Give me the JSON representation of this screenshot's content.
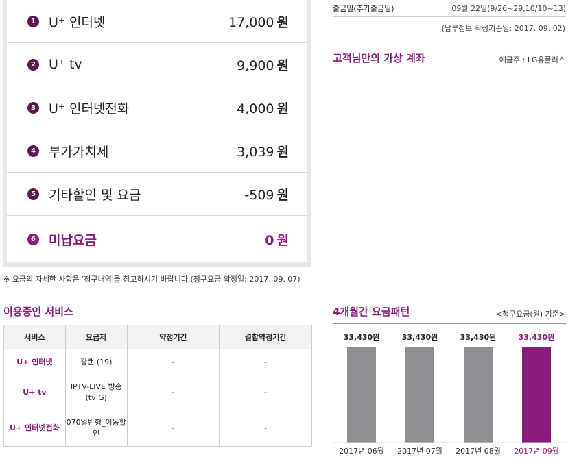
{
  "fees": {
    "items": [
      {
        "num": "1",
        "label": "U⁺ 인터넷",
        "amount": "17,000",
        "unit": "원"
      },
      {
        "num": "2",
        "label": "U⁺ tv",
        "amount": "9,900",
        "unit": "원"
      },
      {
        "num": "3",
        "label": "U⁺ 인터넷전화",
        "amount": "4,000",
        "unit": "원"
      },
      {
        "num": "4",
        "label": "부가가치세",
        "amount": "3,039",
        "unit": "원"
      },
      {
        "num": "5",
        "label": "기타할인 및 요금",
        "amount": "-509",
        "unit": "원"
      },
      {
        "num": "6",
        "label": "미납요금",
        "amount": "0",
        "unit": "원"
      }
    ],
    "note": "※ 요금의 자세한 사항은 '청구내역'을 참고하시기 바랍니다.(청구요금 확정일: 2017. 09. 07)"
  },
  "payment": {
    "label": "출금일(추가출금일)",
    "value": "09월 22일(9/26~29,10/10~13)",
    "sub": "(납부정보 작성기준일: 2017. 09. 02)"
  },
  "virtual_account": {
    "title": "고객님만의 가상 계좌",
    "depositor": "예금주 : LG유플러스"
  },
  "services": {
    "title": "이용중인 서비스",
    "headers": [
      "서비스",
      "요금제",
      "약정기간",
      "결합약정기간"
    ],
    "rows": [
      {
        "service": "U+ 인터넷",
        "plan": "광랜 (19)",
        "term": "-",
        "bundle_term": "-"
      },
      {
        "service": "U+ tv",
        "plan": "IPTV-LIVE 방송(tv G)",
        "term": "-",
        "bundle_term": "-"
      },
      {
        "service": "U+ 인터넷전화",
        "plan": "070일반형_이동할인",
        "term": "-",
        "bundle_term": "-"
      }
    ]
  },
  "chart_title": "4개월간 요금패턴",
  "chart_unit": "<청구요금(원) 기준>",
  "colors": {
    "accent": "#8a1a7c",
    "bar_gray": "#8e8e93"
  },
  "chart_data": {
    "type": "bar",
    "categories": [
      "2017년 06월",
      "2017년 07월",
      "2017년 08월",
      "2017년 09월"
    ],
    "values": [
      33430,
      33430,
      33430,
      33430
    ],
    "value_labels": [
      "33,430원",
      "33,430원",
      "33,430원",
      "33,430원"
    ],
    "highlight_index": 3,
    "ylim": [
      0,
      40000
    ]
  }
}
